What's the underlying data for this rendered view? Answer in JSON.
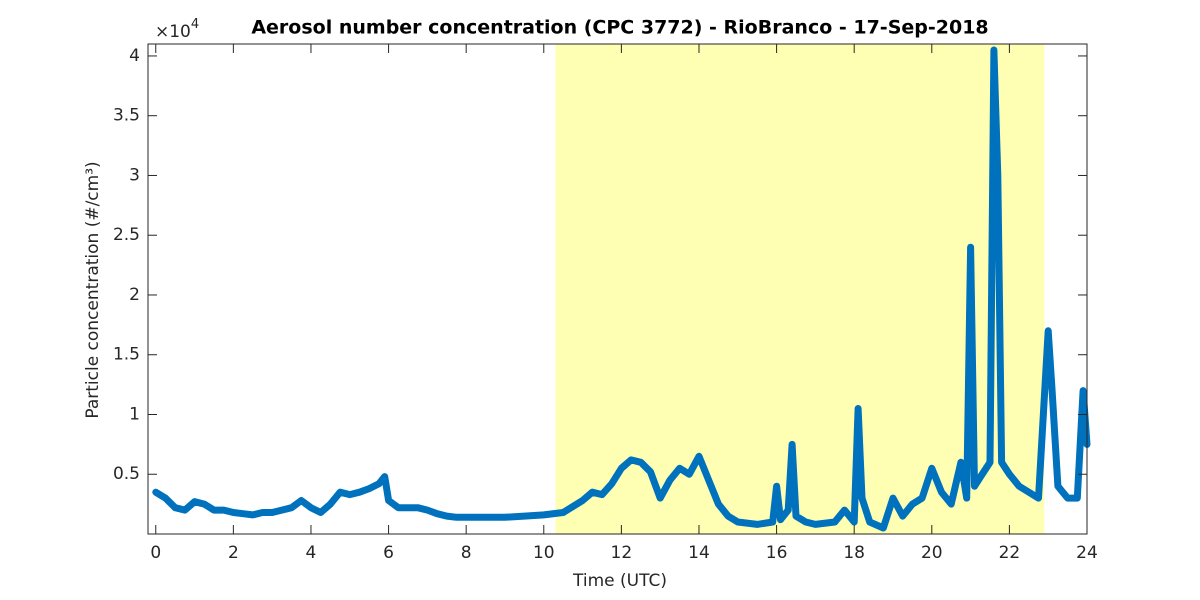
{
  "chart_data": {
    "type": "line",
    "title": "Aerosol number concentration (CPC 3772) - RioBranco - 17-Sep-2018",
    "x_label": "Time (UTC)",
    "y_label": "Particle concentration (#/cm³)",
    "y_multiplier": {
      "base": "×10",
      "exponent": 4
    },
    "xlim": [
      -0.2,
      24
    ],
    "ylim": [
      0,
      4.1
    ],
    "xticks": [
      0,
      2,
      4,
      6,
      8,
      10,
      12,
      14,
      16,
      18,
      20,
      22,
      24
    ],
    "yticks": [
      0.5,
      1,
      1.5,
      2,
      2.5,
      3,
      3.5,
      4
    ],
    "shade": {
      "x": [
        10.3,
        22.9
      ],
      "color": "#ffffb3"
    },
    "series": [
      {
        "color": "#0072bd",
        "x": [
          0,
          0.25,
          0.5,
          0.75,
          1,
          1.25,
          1.5,
          1.75,
          2,
          2.25,
          2.5,
          2.75,
          3,
          3.25,
          3.5,
          3.75,
          4,
          4.25,
          4.5,
          4.75,
          5,
          5.25,
          5.5,
          5.75,
          5.9,
          6,
          6.25,
          6.5,
          6.75,
          7,
          7.25,
          7.5,
          7.75,
          8,
          8.5,
          9,
          9.5,
          10,
          10.5,
          11,
          11.25,
          11.5,
          11.75,
          12,
          12.25,
          12.5,
          12.75,
          13,
          13.25,
          13.5,
          13.75,
          14,
          14.25,
          14.5,
          14.75,
          15,
          15.5,
          15.9,
          16,
          16.1,
          16.3,
          16.4,
          16.5,
          16.75,
          17,
          17.5,
          17.75,
          18,
          18.1,
          18.2,
          18.4,
          18.75,
          19,
          19.25,
          19.5,
          19.75,
          20,
          20.25,
          20.5,
          20.75,
          20.9,
          21,
          21.1,
          21.3,
          21.5,
          21.6,
          21.7,
          21.8,
          22,
          22.25,
          22.5,
          22.75,
          23,
          23.1,
          23.25,
          23.5,
          23.75,
          23.9,
          24
        ],
        "values": [
          0.35,
          0.3,
          0.22,
          0.2,
          0.27,
          0.25,
          0.2,
          0.2,
          0.18,
          0.17,
          0.16,
          0.18,
          0.18,
          0.2,
          0.22,
          0.28,
          0.22,
          0.18,
          0.25,
          0.35,
          0.33,
          0.35,
          0.38,
          0.42,
          0.48,
          0.28,
          0.22,
          0.22,
          0.22,
          0.2,
          0.17,
          0.15,
          0.14,
          0.14,
          0.14,
          0.14,
          0.15,
          0.16,
          0.18,
          0.28,
          0.35,
          0.33,
          0.42,
          0.55,
          0.62,
          0.6,
          0.52,
          0.3,
          0.45,
          0.55,
          0.5,
          0.65,
          0.45,
          0.25,
          0.15,
          0.1,
          0.08,
          0.1,
          0.4,
          0.12,
          0.2,
          0.75,
          0.15,
          0.1,
          0.08,
          0.1,
          0.2,
          0.1,
          1.05,
          0.3,
          0.1,
          0.05,
          0.3,
          0.15,
          0.25,
          0.3,
          0.55,
          0.35,
          0.25,
          0.6,
          0.3,
          2.4,
          0.4,
          0.5,
          0.6,
          4.05,
          3,
          0.6,
          0.5,
          0.4,
          0.35,
          0.3,
          1.7,
          1.2,
          0.4,
          0.3,
          0.3,
          1.2,
          0.75
        ]
      }
    ]
  }
}
